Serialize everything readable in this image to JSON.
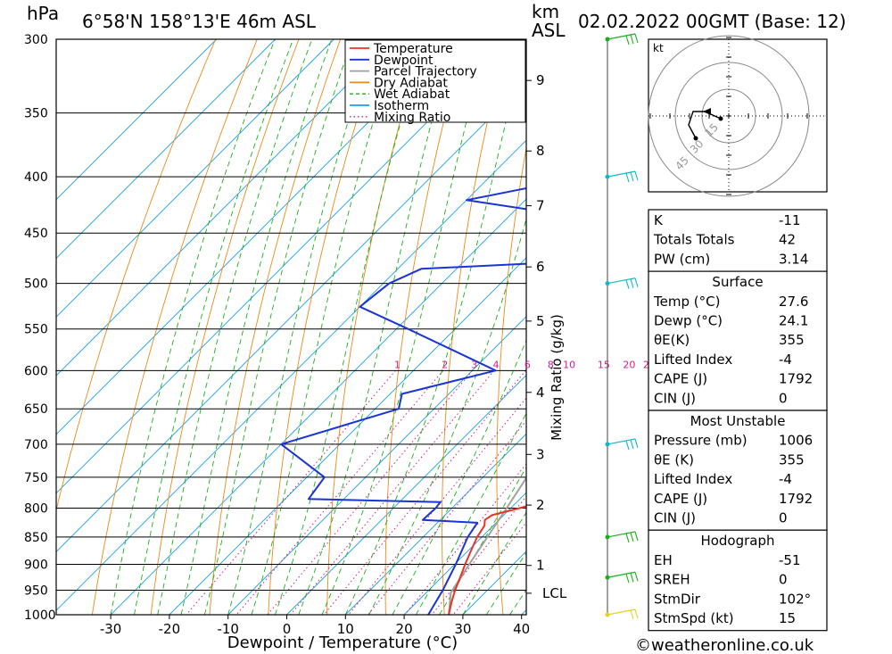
{
  "header": {
    "location": "6°58'N  158°13'E  46m  ASL",
    "datetime": "02.02.2022  00GMT  (Base: 12)",
    "unit_hpa": "hPa",
    "unit_km": "km",
    "unit_asl": "ASL"
  },
  "colors": {
    "temperature": "#e8332a",
    "dewpoint": "#1a34d6",
    "parcel": "#a0a0a0",
    "dry_adiabat": "#e88a1c",
    "wet_adiabat": "#19b019",
    "isotherm": "#1aa0e6",
    "mixing_ratio": "#d81a8a",
    "wind_green": "#19b019",
    "wind_cyan": "#10b8c8",
    "wind_yellow": "#e6d21a"
  },
  "legend": [
    {
      "label": "Temperature",
      "color": "#e8332a",
      "style": "solid"
    },
    {
      "label": "Dewpoint",
      "color": "#1a34d6",
      "style": "solid"
    },
    {
      "label": "Parcel Trajectory",
      "color": "#a0a0a0",
      "style": "solid"
    },
    {
      "label": "Dry Adiabat",
      "color": "#e88a1c",
      "style": "solid"
    },
    {
      "label": "Wet Adiabat",
      "color": "#19b019",
      "style": "dashed"
    },
    {
      "label": "Isotherm",
      "color": "#1aa0e6",
      "style": "solid"
    },
    {
      "label": "Mixing Ratio",
      "color": "#d81a8a",
      "style": "dotted"
    }
  ],
  "chart_data": {
    "type": "skew-t",
    "xlabel": "Dewpoint / Temperature (°C)",
    "ylabel_right": "Mixing Ratio (g/kg)",
    "x_ticks": [
      -30,
      -20,
      -10,
      0,
      10,
      20,
      30,
      40
    ],
    "pressure_levels": [
      300,
      350,
      400,
      450,
      500,
      550,
      600,
      650,
      700,
      750,
      800,
      850,
      900,
      950,
      1000
    ],
    "km_ticks": [
      {
        "label": "9",
        "p": 327
      },
      {
        "label": "8",
        "p": 379
      },
      {
        "label": "7",
        "p": 425
      },
      {
        "label": "6",
        "p": 483
      },
      {
        "label": "5",
        "p": 541
      },
      {
        "label": "4",
        "p": 628
      },
      {
        "label": "3",
        "p": 715
      },
      {
        "label": "2",
        "p": 795
      },
      {
        "label": "1",
        "p": 902
      },
      {
        "label": "LCL",
        "p": 956
      }
    ],
    "mixing_ratio_labels": [
      "1",
      "2",
      "3",
      "4",
      "6",
      "8",
      "10",
      "15",
      "20",
      "25"
    ],
    "mixing_ratio_values": [
      1,
      2,
      3,
      4,
      6,
      8,
      10,
      15,
      20,
      25
    ],
    "mixing_ratio_label_pressure": 600,
    "temperature": [
      {
        "p": 1000,
        "t": 27.6
      },
      {
        "p": 975,
        "t": 26.0
      },
      {
        "p": 950,
        "t": 24.5
      },
      {
        "p": 925,
        "t": 23.2
      },
      {
        "p": 900,
        "t": 21.8
      },
      {
        "p": 875,
        "t": 20.5
      },
      {
        "p": 850,
        "t": 19.2
      },
      {
        "p": 830,
        "t": 18.5
      },
      {
        "p": 820,
        "t": 17.6
      },
      {
        "p": 812,
        "t": 18.0
      },
      {
        "p": 800,
        "t": 21.5
      },
      {
        "p": 785,
        "t": 25.5
      },
      {
        "p": 775,
        "t": 26.2
      },
      {
        "p": 760,
        "t": 24.8
      },
      {
        "p": 700,
        "t": 19.5
      },
      {
        "p": 650,
        "t": 15.0
      },
      {
        "p": 620,
        "t": 13.7
      },
      {
        "p": 600,
        "t": 11.6
      },
      {
        "p": 550,
        "t": 6.2
      },
      {
        "p": 500,
        "t": 1.1
      },
      {
        "p": 475,
        "t": -1.6
      },
      {
        "p": 460,
        "t": -2.4
      },
      {
        "p": 450,
        "t": -3.7
      },
      {
        "p": 400,
        "t": -9.5
      },
      {
        "p": 370,
        "t": -14.0
      },
      {
        "p": 360,
        "t": -15.0
      }
    ],
    "dewpoint": [
      {
        "p": 1000,
        "t": 24.1
      },
      {
        "p": 950,
        "t": 22.4
      },
      {
        "p": 900,
        "t": 20.2
      },
      {
        "p": 850,
        "t": 17.6
      },
      {
        "p": 825,
        "t": 16.8
      },
      {
        "p": 820,
        "t": 7.0
      },
      {
        "p": 800,
        "t": 7.2
      },
      {
        "p": 790,
        "t": 7.0
      },
      {
        "p": 785,
        "t": -16.0
      },
      {
        "p": 750,
        "t": -17.0
      },
      {
        "p": 700,
        "t": -30.0
      },
      {
        "p": 650,
        "t": -16.0
      },
      {
        "p": 630,
        "t": -18.0
      },
      {
        "p": 600,
        "t": -6.0
      },
      {
        "p": 550,
        "t": -28.0
      },
      {
        "p": 525,
        "t": -40.0
      },
      {
        "p": 500,
        "t": -39.0
      },
      {
        "p": 485,
        "t": -36.0
      },
      {
        "p": 475,
        "t": -3.0
      },
      {
        "p": 470,
        "t": -20.0
      },
      {
        "p": 465,
        "t": -12.0
      },
      {
        "p": 460,
        "t": -20.0
      },
      {
        "p": 458,
        "t": -8.0
      },
      {
        "p": 440,
        "t": -11.0
      },
      {
        "p": 420,
        "t": -40.0
      },
      {
        "p": 405,
        "t": -28.0
      },
      {
        "p": 395,
        "t": -24.0
      },
      {
        "p": 370,
        "t": -26.0
      },
      {
        "p": 352,
        "t": -13.0
      },
      {
        "p": 343,
        "t": -37.0
      },
      {
        "p": 335,
        "t": -12.0
      },
      {
        "p": 328,
        "t": -4.0
      },
      {
        "p": 317,
        "t": -5.0
      },
      {
        "p": 300,
        "t": -8.5
      }
    ],
    "parcel": [
      {
        "p": 1000,
        "t": 27.6
      },
      {
        "p": 955,
        "t": 24.2
      },
      {
        "p": 900,
        "t": 22.5
      },
      {
        "p": 800,
        "t": 19.3
      },
      {
        "p": 700,
        "t": 15.5
      },
      {
        "p": 600,
        "t": 10.0
      },
      {
        "p": 500,
        "t": 2.5
      },
      {
        "p": 450,
        "t": -2.5
      },
      {
        "p": 400,
        "t": -8.5
      },
      {
        "p": 380,
        "t": -11.5
      }
    ],
    "wind_barbs_p": [
      300,
      400,
      500,
      700,
      850,
      925,
      1000
    ]
  },
  "hodograph": {
    "unit": "kt",
    "rings": [
      "15",
      "30",
      "45"
    ]
  },
  "indices": {
    "basic": [
      {
        "label": "K",
        "value": "-11"
      },
      {
        "label": "Totals Totals",
        "value": "42"
      },
      {
        "label": "PW (cm)",
        "value": "3.14"
      }
    ],
    "surface": {
      "title": "Surface",
      "rows": [
        {
          "label": "Temp (°C)",
          "value": "27.6"
        },
        {
          "label": "Dewp (°C)",
          "value": "24.1"
        },
        {
          "label": "θE(K)",
          "value": "355"
        },
        {
          "label": "Lifted Index",
          "value": "-4"
        },
        {
          "label": "CAPE (J)",
          "value": "1792"
        },
        {
          "label": "CIN (J)",
          "value": "0"
        }
      ]
    },
    "most_unstable": {
      "title": "Most Unstable",
      "rows": [
        {
          "label": "Pressure (mb)",
          "value": "1006"
        },
        {
          "label": "θE (K)",
          "value": "355"
        },
        {
          "label": "Lifted Index",
          "value": "-4"
        },
        {
          "label": "CAPE (J)",
          "value": "1792"
        },
        {
          "label": "CIN (J)",
          "value": "0"
        }
      ]
    },
    "hodograph_stats": {
      "title": "Hodograph",
      "rows": [
        {
          "label": "EH",
          "value": "-51"
        },
        {
          "label": "SREH",
          "value": "0"
        },
        {
          "label": "StmDir",
          "value": "102°"
        },
        {
          "label": "StmSpd (kt)",
          "value": "15"
        }
      ]
    }
  },
  "footer": {
    "copyright": "©weatheronline.co.uk"
  }
}
